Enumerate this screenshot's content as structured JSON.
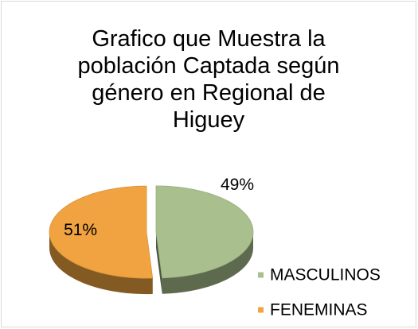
{
  "chart_data": {
    "type": "pie",
    "title": "Grafico que Muestra la población Captada según género en Regional de Higuey",
    "categories": [
      "MASCULINOS",
      "FENEMINAS"
    ],
    "values": [
      49,
      51
    ],
    "value_labels": [
      "49%",
      "51%"
    ],
    "colors": [
      "#a9c08e",
      "#f0a340"
    ],
    "legend": "bottom-right"
  }
}
